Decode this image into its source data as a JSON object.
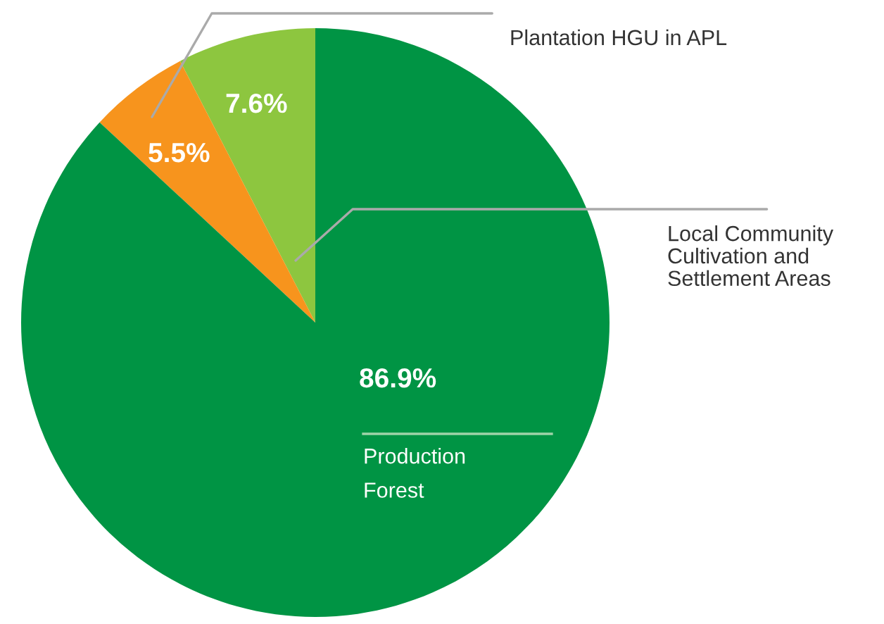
{
  "chart_data": {
    "type": "pie",
    "categories": [
      "Local Community\nCultivation and\nSettlement Areas",
      "Plantation HGU in APL",
      "Production\nForest"
    ],
    "values": [
      7.6,
      5.5,
      86.9
    ],
    "colors": [
      "#8dc63f",
      "#f7941d",
      "#009444"
    ],
    "value_labels": [
      "7.6%",
      "5.5%",
      "86.9%"
    ]
  }
}
